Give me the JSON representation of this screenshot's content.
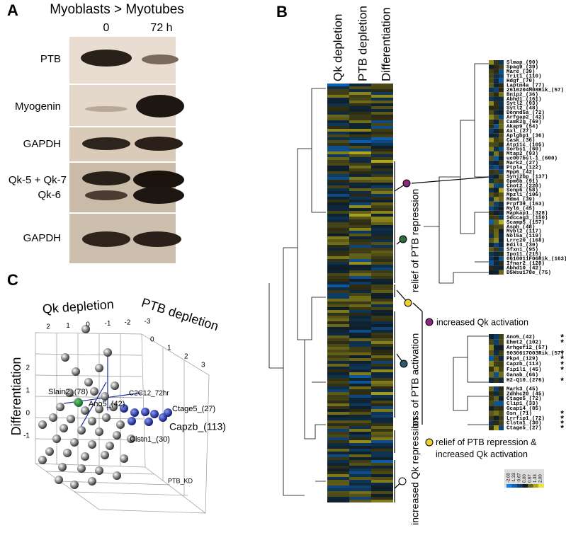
{
  "panel_a": {
    "letter": "A",
    "header": "Myoblasts > Myotubes",
    "timepoints": [
      "0",
      "72 h"
    ],
    "rows": [
      "PTB",
      "Myogenin",
      "GAPDH",
      "Qk-5 + Qk-7",
      "Qk-6",
      "GAPDH"
    ]
  },
  "panel_b": {
    "letter": "B",
    "columns": [
      "Qk depletion",
      "PTB depletion",
      "Differentiation"
    ],
    "clusters": [
      "relief of PTB repression",
      "loss of PTB activation",
      "increased Qk repression"
    ],
    "legend": [
      "increased Qk activation",
      "relief of PTB repression & increased Qk activation"
    ],
    "scale": [
      "-2.00",
      "-1.33",
      "-0.67",
      "0.00",
      "0.67",
      "1.33",
      "2.00"
    ],
    "genes_upper": [
      {
        "label": "Slmap_(90)"
      },
      {
        "label": "Spag9_(39)"
      },
      {
        "label": "Mare_(39)"
      },
      {
        "label": "Trit1_(110)"
      },
      {
        "label": "Hdgf_(70)"
      },
      {
        "label": "Laptm4a_(77)"
      },
      {
        "label": "2610204M08Rik_(57)"
      },
      {
        "label": "Bnip2_(36)"
      },
      {
        "label": "Abhd1_(161)"
      },
      {
        "label": "Sytl2_(93)"
      },
      {
        "label": "Sytl2_(48)"
      },
      {
        "label": "Dennd5a_(72)"
      },
      {
        "label": "Arfgap2_(42)"
      },
      {
        "label": "Camk2g_(69)"
      },
      {
        "label": "Akap9_(54)"
      },
      {
        "label": "Axl_(27)"
      },
      {
        "label": "Aplgbp1_(36)"
      },
      {
        "label": "Cask_(36)"
      },
      {
        "label": "Atp11c_(105)"
      },
      {
        "label": "Sorbs1_(60)"
      },
      {
        "label": "Mtap2_(93)"
      },
      {
        "label": "uc007bsl-1_(600)"
      },
      {
        "label": "Mark2_(27)"
      },
      {
        "label": "Ptpla_(122)"
      },
      {
        "label": "Mpp6_(42)"
      },
      {
        "label": "Synj2bp_(137)"
      },
      {
        "label": "Gpm6b_(91)"
      },
      {
        "label": "Cnot2_(228)"
      },
      {
        "label": "Senp6_(58)"
      },
      {
        "label": "Mpzl1_(106)"
      },
      {
        "label": "Mdm4_(39)"
      },
      {
        "label": "Prpf39_(163)"
      },
      {
        "label": "Myl6_(45)"
      },
      {
        "label": "Mapkap1_(328)"
      },
      {
        "label": "Sdccag3_(150)"
      },
      {
        "label": "Scamp5_(157)"
      },
      {
        "label": "Asph_(48)"
      },
      {
        "label": "Mybl2_(117)"
      },
      {
        "label": "Nol5a_(119)"
      },
      {
        "label": "Lrrc20_(168)"
      },
      {
        "label": "Edil3_(30)"
      },
      {
        "label": "Sfxn1_(95)"
      },
      {
        "label": "Ipo11_(215)"
      },
      {
        "label": "0610011F06Rik_(163)"
      },
      {
        "label": "Ifnar2_(128)"
      },
      {
        "label": "Abhd10_(42)"
      },
      {
        "label": "D5Wsu178e_(75)"
      }
    ],
    "genes_lower_a": [
      {
        "label": "Ano5_(42)",
        "mark": "*"
      },
      {
        "label": "Ehmt2_(102)",
        "mark": "*"
      },
      {
        "label": "Arhgef12_(57)"
      },
      {
        "label": "9030617O03Rik_(57)",
        "mark": "*"
      },
      {
        "label": "Pkp4_(129)",
        "mark": "*"
      },
      {
        "label": "Capzb_(113)",
        "mark": "*"
      },
      {
        "label": "Fip1l1_(45)",
        "mark": "*"
      },
      {
        "label": "Ganab_(66)"
      },
      {
        "label": "H2-Q10_(276)",
        "mark": "*"
      }
    ],
    "genes_lower_b": [
      {
        "label": "Mark3_(45)"
      },
      {
        "label": "Zdhhc20_(45)"
      },
      {
        "label": "Ctage5_(72)"
      },
      {
        "label": "Clip1_(33)"
      },
      {
        "label": "Gcap14_(85)"
      },
      {
        "label": "Gsn_(71)",
        "mark": "*"
      },
      {
        "label": "Lrrfip1_(72)",
        "mark": "*"
      },
      {
        "label": "Clstn1_(30)",
        "mark": "*"
      },
      {
        "label": "Ctage5_(27)",
        "mark": "*"
      }
    ]
  },
  "panel_c": {
    "letter": "C",
    "axes": [
      "Qk depletion",
      "PTB depletion",
      "Differentiation"
    ],
    "ticks_qk": [
      "2",
      "1",
      "0",
      "-1",
      "-2",
      "-3"
    ],
    "ticks_ptb": [
      "0",
      "1",
      "2",
      "3"
    ],
    "ticks_diff": [
      "2",
      "1",
      "0",
      "-1"
    ],
    "labels": [
      "Slain2_(78)",
      "Ano5_(42)",
      "C2C12_72hr",
      "Ctage5_(27)",
      "Capzb_(113)",
      "Clstn1_(30)",
      "PTB_KD"
    ]
  }
}
